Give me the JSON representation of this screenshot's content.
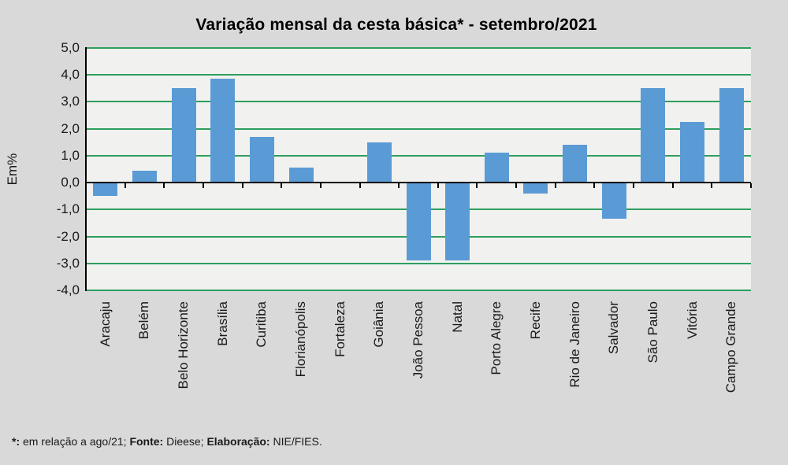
{
  "chart_data": {
    "type": "bar",
    "title": "Variação mensal da cesta básica* - setembro/2021",
    "xlabel": "",
    "ylabel": "Em%",
    "categories": [
      "Aracaju",
      "Belém",
      "Belo Horizonte",
      "Brasília",
      "Curitiba",
      "Florianópolis",
      "Fortaleza",
      "Goiânia",
      "João Pessoa",
      "Natal",
      "Porto Alegre",
      "Recife",
      "Rio de Janeiro",
      "Salvador",
      "São Paulo",
      "Vitória",
      "Campo Grande"
    ],
    "values": [
      -0.5,
      0.45,
      3.5,
      3.85,
      1.7,
      0.55,
      0.0,
      1.5,
      -2.9,
      -2.9,
      1.1,
      -0.4,
      1.4,
      -1.35,
      3.5,
      2.25,
      3.5
    ],
    "ylim": [
      -4.0,
      5.0
    ],
    "ytick_step": 1.0,
    "ytick_labels": [
      "5,0",
      "4,0",
      "3,0",
      "2,0",
      "1,0",
      "0,0",
      "-1,0",
      "-2,0",
      "-3,0",
      "-4,0"
    ],
    "grid": true,
    "legend": false
  },
  "colors": {
    "page_bg": "#d9d9d9",
    "plot_bg": "#f1f1ef",
    "bar": "#5b9bd5",
    "gridline": "#2e9e5e",
    "axis": "#000000"
  },
  "footnote": {
    "segments": [
      {
        "text": "*:",
        "bold": true
      },
      {
        "text": " em relação a ago/21; ",
        "bold": false
      },
      {
        "text": "Fonte:",
        "bold": true
      },
      {
        "text": " Dieese; ",
        "bold": false
      },
      {
        "text": "Elaboração:",
        "bold": true
      },
      {
        "text": " NIE/FIES.",
        "bold": false
      }
    ]
  }
}
